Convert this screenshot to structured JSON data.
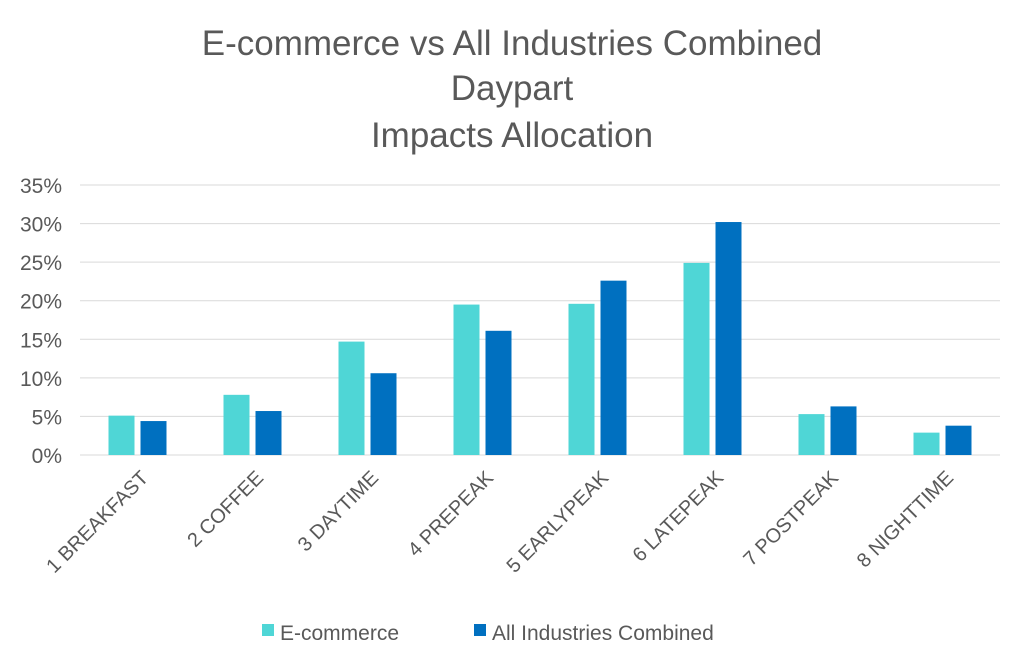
{
  "chart_data": {
    "type": "bar",
    "title_lines": [
      "E-commerce vs All Industries Combined",
      "Daypart",
      "Impacts Allocation"
    ],
    "categories": [
      "1 BREAKFAST",
      "2 COFFEE",
      "3 DAYTIME",
      "4 PREPEAK",
      "5 EARLYPEAK",
      "6 LATEPEAK",
      "7 POSTPEAK",
      "8 NIGHTTIME"
    ],
    "series": [
      {
        "name": "E-commerce",
        "color": "#4fd6d6",
        "values": [
          5.1,
          7.8,
          14.7,
          19.5,
          19.6,
          24.9,
          5.3,
          2.9
        ]
      },
      {
        "name": "All Industries Combined",
        "color": "#0070c0",
        "values": [
          4.4,
          5.7,
          10.6,
          16.1,
          22.6,
          30.2,
          6.3,
          3.8
        ]
      }
    ],
    "yticks": [
      "0%",
      "5%",
      "10%",
      "15%",
      "20%",
      "25%",
      "30%",
      "35%"
    ],
    "ylim": [
      0,
      35
    ],
    "grid": true,
    "legend_position": "bottom"
  }
}
